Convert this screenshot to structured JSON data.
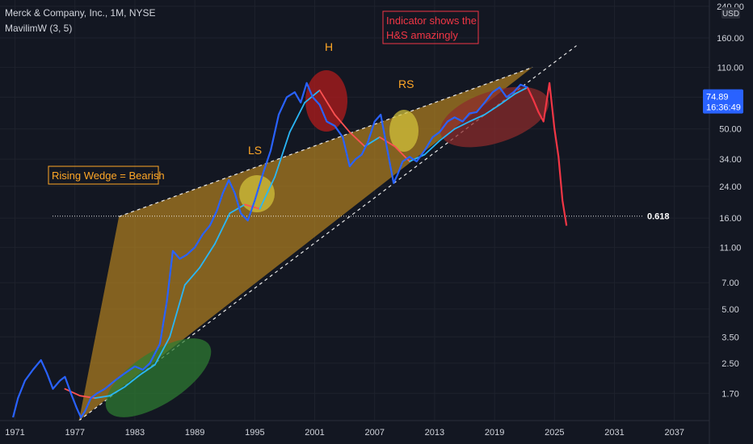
{
  "header": {
    "title": "Merck & Company, Inc., 1M, NYSE",
    "indicator": "MavilimW (3, 5)"
  },
  "colors": {
    "background": "#131722",
    "price_line": "#2962ff",
    "indicator_up": "#29b6f6",
    "indicator_down": "#ff5252",
    "projection": "#f23645",
    "wedge_fill": "#c8901f",
    "annotation_orange": "#ffa726",
    "annotation_red": "#f23645",
    "last_price_badge": "#2962ff"
  },
  "annotations": {
    "note_indicator": [
      "Indicator shows the",
      "H&S amazingly"
    ],
    "note_wedge": "Rising Wedge = Bearish",
    "head_label": "H",
    "left_shoulder_label": "LS",
    "right_shoulder_label": "RS",
    "fib_label": "0.618"
  },
  "price_badge": {
    "price": "74.89",
    "countdown": "16:36:49"
  },
  "currency": "USD",
  "chart_data": {
    "type": "line",
    "title": "Merck & Company, Inc., 1M, NYSE",
    "y_scale": "log",
    "ylim": [
      1.2,
      260
    ],
    "xlim": [
      1969.5,
      2040.5
    ],
    "x_ticks": [
      1971,
      1977,
      1983,
      1989,
      1995,
      2001,
      2007,
      2013,
      2019,
      2025,
      2031,
      2037
    ],
    "y_ticks": [
      240,
      160,
      110,
      75,
      50,
      34,
      24,
      16,
      11,
      7,
      5,
      3.5,
      2.5,
      1.7
    ],
    "y_tick_labels": [
      "240.00",
      "160.00",
      "110.00",
      "75.00",
      "50.00",
      "34.00",
      "24.00",
      "16.00",
      "11.00",
      "7.00",
      "5.00",
      "3.50",
      "2.50",
      "1.70"
    ],
    "fib_level": 16.4,
    "last_price": 74.89,
    "series": [
      {
        "x": [
          1970.8,
          1971.3,
          1972.0,
          1972.8,
          1973.6,
          1974.2,
          1974.8,
          1975.5,
          1976.0,
          1976.6,
          1977.2,
          1977.6,
          1978.0,
          1978.6,
          1979.2,
          1980.0,
          1981.0,
          1982.0,
          1983.0,
          1983.8,
          1984.5,
          1985.5,
          1986.2,
          1986.8,
          1987.5,
          1988.2,
          1989.0,
          1989.8,
          1990.5,
          1991.2,
          1991.8,
          1992.4,
          1993.0,
          1993.6,
          1994.3,
          1995.0,
          1995.8,
          1996.6,
          1997.4,
          1998.2,
          1999.0,
          1999.6,
          2000.2,
          2000.8,
          2001.5,
          2002.2,
          2003.0,
          2003.8,
          2004.5,
          2005.1,
          2005.7,
          2006.3,
          2007.0,
          2007.6,
          2008.2,
          2008.9,
          2009.3,
          2009.8,
          2010.5,
          2011.2,
          2012.0,
          2012.8,
          2013.5,
          2014.3,
          2015.0,
          2015.8,
          2016.5,
          2017.2,
          2018.0,
          2018.8,
          2019.5,
          2020.2,
          2020.9,
          2021.6,
          2022.3
        ],
        "y": [
          1.25,
          1.6,
          2.0,
          2.3,
          2.6,
          2.2,
          1.8,
          2.0,
          2.1,
          1.7,
          1.4,
          1.25,
          1.35,
          1.6,
          1.7,
          1.8,
          2.0,
          2.2,
          2.4,
          2.3,
          2.5,
          3.2,
          5.5,
          10.5,
          9.5,
          10.0,
          11.0,
          13.0,
          14.5,
          17.5,
          22.0,
          26.0,
          22.0,
          17.0,
          15.5,
          20.0,
          28.0,
          38.0,
          60.0,
          75.0,
          80.0,
          70.0,
          90.0,
          75.0,
          68.0,
          55.0,
          52.0,
          45.0,
          31.0,
          34.0,
          36.0,
          42.0,
          55.0,
          60.0,
          40.0,
          25.0,
          28.0,
          33.0,
          35.0,
          33.0,
          38.0,
          45.0,
          48.0,
          55.0,
          58.0,
          55.0,
          61.0,
          62.0,
          70.0,
          80.0,
          85.0,
          75.0,
          80.0,
          88.0,
          85.0
        ]
      },
      {
        "x": [
          2022.3,
          2022.9,
          2023.4,
          2023.9,
          2024.5,
          2025.0,
          2025.4,
          2025.8,
          2026.2
        ],
        "y": [
          85.0,
          72.0,
          62.0,
          55.0,
          90.0,
          50.0,
          35.0,
          20.0,
          14.5
        ]
      },
      {
        "x": [
          1976.0,
          1977.5,
          1979.0,
          1980.5,
          1982.0,
          1983.5,
          1985.0,
          1986.5,
          1988.0,
          1989.5,
          1991.0,
          1992.5,
          1994.0,
          1995.5,
          1997.0,
          1998.5,
          2000.0,
          2001.5,
          2003.0,
          2004.5,
          2006.0,
          2007.5,
          2009.0,
          2010.5,
          2012.0,
          2013.5,
          2015.0,
          2016.5,
          2018.0,
          2019.5,
          2021.0,
          2022.3
        ],
        "y": [
          1.8,
          1.65,
          1.6,
          1.65,
          1.85,
          2.15,
          2.45,
          3.5,
          6.8,
          8.5,
          11.5,
          17.0,
          19.0,
          18.0,
          27.0,
          48.0,
          70.0,
          82.0,
          60.0,
          48.0,
          40.0,
          45.0,
          40.0,
          33.0,
          36.0,
          43.0,
          50.0,
          55.0,
          60.0,
          68.0,
          78.0,
          85.0
        ]
      }
    ]
  }
}
